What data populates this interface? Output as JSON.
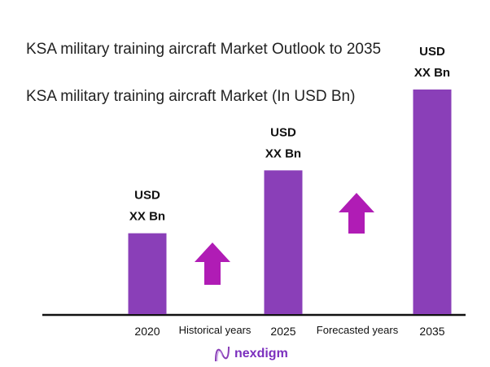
{
  "chart_data": {
    "type": "bar",
    "title": "KSA military training aircraft Market Outlook to 2035",
    "subtitle": "KSA military training aircraft Market (In USD Bn)",
    "categories": [
      "2020",
      "2025",
      "2035"
    ],
    "values": [
      36,
      64,
      100
    ],
    "value_note_scale": "relative",
    "data_labels": [
      [
        "USD",
        "XX Bn"
      ],
      [
        "USD",
        "XX Bn"
      ],
      [
        "USD",
        "XX Bn"
      ]
    ],
    "annotations": [
      "Historical years",
      "Forecasted years"
    ],
    "ylim": [
      0,
      100
    ],
    "grid": false,
    "colors": {
      "bar": "#8a3fb8",
      "arrow": "#b01cb5",
      "axis": "#111111"
    }
  },
  "brand": {
    "name": "nexdigm",
    "icon": "nexdigm-wave-logo"
  }
}
